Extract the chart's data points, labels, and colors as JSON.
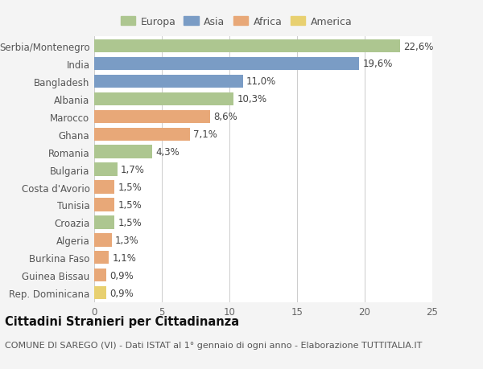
{
  "categories": [
    "Serbia/Montenegro",
    "India",
    "Bangladesh",
    "Albania",
    "Marocco",
    "Ghana",
    "Romania",
    "Bulgaria",
    "Costa d'Avorio",
    "Tunisia",
    "Croazia",
    "Algeria",
    "Burkina Faso",
    "Guinea Bissau",
    "Rep. Dominicana"
  ],
  "values": [
    22.6,
    19.6,
    11.0,
    10.3,
    8.6,
    7.1,
    4.3,
    1.7,
    1.5,
    1.5,
    1.5,
    1.3,
    1.1,
    0.9,
    0.9
  ],
  "labels": [
    "22,6%",
    "19,6%",
    "11,0%",
    "10,3%",
    "8,6%",
    "7,1%",
    "4,3%",
    "1,7%",
    "1,5%",
    "1,5%",
    "1,5%",
    "1,3%",
    "1,1%",
    "0,9%",
    "0,9%"
  ],
  "continents": [
    "Europa",
    "Asia",
    "Asia",
    "Europa",
    "Africa",
    "Africa",
    "Europa",
    "Europa",
    "Africa",
    "Africa",
    "Europa",
    "Africa",
    "Africa",
    "Africa",
    "America"
  ],
  "continent_colors": {
    "Europa": "#adc690",
    "Asia": "#7a9cc5",
    "Africa": "#e8a878",
    "America": "#e8d070"
  },
  "legend_order": [
    "Europa",
    "Asia",
    "Africa",
    "America"
  ],
  "xlim": [
    0,
    25
  ],
  "xticks": [
    0,
    5,
    10,
    15,
    20,
    25
  ],
  "background_color": "#f4f4f4",
  "plot_bg_color": "#ffffff",
  "title": "Cittadini Stranieri per Cittadinanza",
  "subtitle": "COMUNE DI SAREGO (VI) - Dati ISTAT al 1° gennaio di ogni anno - Elaborazione TUTTITALIA.IT",
  "bar_height": 0.75,
  "label_fontsize": 8.5,
  "tick_fontsize": 8.5,
  "title_fontsize": 10.5,
  "subtitle_fontsize": 8.0
}
